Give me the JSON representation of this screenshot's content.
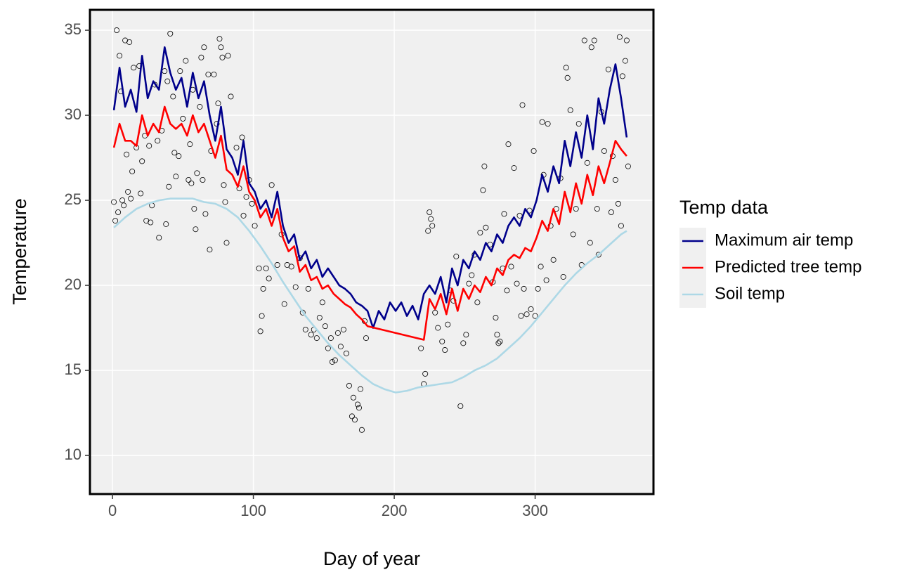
{
  "chart_data": {
    "type": "line",
    "x_label": "Day of year",
    "y_label": "Temperature",
    "legend_title": "Temp data",
    "legend_position": "right",
    "grid": true,
    "xlim": [
      -16,
      384
    ],
    "ylim": [
      7.73,
      36.2
    ],
    "xticks": [
      0,
      100,
      200,
      300
    ],
    "yticks": [
      10,
      15,
      20,
      25,
      30,
      35
    ],
    "series": [
      {
        "name": "Maximum air temp",
        "color": "#00008b",
        "x": [
          1,
          5,
          9,
          13,
          17,
          21,
          25,
          29,
          33,
          37,
          41,
          45,
          49,
          53,
          57,
          61,
          65,
          69,
          73,
          77,
          81,
          85,
          89,
          93,
          97,
          101,
          105,
          109,
          113,
          117,
          121,
          125,
          129,
          133,
          137,
          141,
          145,
          149,
          153,
          157,
          161,
          165,
          169,
          173,
          177,
          181,
          185,
          189,
          193,
          197,
          201,
          205,
          209,
          213,
          217,
          221,
          225,
          229,
          233,
          237,
          241,
          245,
          249,
          253,
          257,
          261,
          265,
          269,
          273,
          277,
          281,
          285,
          289,
          293,
          297,
          301,
          305,
          309,
          313,
          317,
          321,
          325,
          329,
          333,
          337,
          341,
          345,
          349,
          353,
          357,
          361,
          365
        ],
        "y": [
          30.3,
          32.8,
          30.5,
          31.5,
          30.2,
          33.5,
          31,
          32,
          31.5,
          34,
          32.5,
          31.5,
          32.2,
          30.5,
          32.5,
          31,
          32,
          30,
          28.5,
          30.5,
          28,
          27.5,
          26.5,
          28.5,
          26,
          25.5,
          24.5,
          25,
          24,
          25.5,
          23.5,
          22.5,
          23,
          21.5,
          22,
          21,
          21.5,
          20.5,
          21,
          20.5,
          20,
          19.8,
          19.5,
          19,
          18.8,
          18.5,
          17.5,
          18.5,
          18,
          19,
          18.5,
          19,
          18.2,
          18.8,
          18,
          19.5,
          20,
          19.5,
          20.5,
          19,
          21,
          20,
          21.5,
          21,
          22,
          21.5,
          22.5,
          22,
          23,
          22.5,
          23.5,
          24,
          23.5,
          24.5,
          24,
          25,
          26.5,
          25.5,
          27,
          26,
          28.5,
          27,
          29,
          27.5,
          30,
          28,
          31,
          29.5,
          31.5,
          33,
          31,
          28.7
        ]
      },
      {
        "name": "Predicted tree temp",
        "color": "#ff0000",
        "x": [
          1,
          5,
          9,
          13,
          17,
          21,
          25,
          29,
          33,
          37,
          41,
          45,
          49,
          53,
          57,
          61,
          65,
          69,
          73,
          77,
          81,
          85,
          89,
          93,
          97,
          101,
          105,
          109,
          113,
          117,
          121,
          125,
          129,
          133,
          137,
          141,
          145,
          149,
          153,
          157,
          161,
          165,
          169,
          173,
          177,
          181,
          221,
          225,
          229,
          233,
          237,
          241,
          245,
          249,
          253,
          257,
          261,
          265,
          269,
          273,
          277,
          281,
          285,
          289,
          293,
          297,
          301,
          305,
          309,
          313,
          317,
          321,
          325,
          329,
          333,
          337,
          341,
          345,
          349,
          353,
          357,
          361,
          365
        ],
        "y": [
          28.1,
          29.5,
          28.5,
          28.5,
          28.2,
          30,
          28.8,
          29.5,
          29,
          30.5,
          29.5,
          29.2,
          29.5,
          28.8,
          30,
          29,
          29.5,
          28.5,
          27.5,
          28.8,
          26.8,
          26.5,
          25.8,
          27,
          25.5,
          25,
          24,
          24.5,
          23.5,
          24.5,
          22.8,
          22,
          22.3,
          20.8,
          21.2,
          20.3,
          20.5,
          19.8,
          20,
          19.5,
          19.2,
          18.9,
          18.7,
          18.3,
          18,
          17.6,
          16.8,
          19.2,
          18.6,
          19.5,
          18.3,
          19.8,
          18.5,
          19.8,
          19.2,
          20,
          19.6,
          20.5,
          20,
          21,
          20.6,
          21.5,
          21.8,
          21.6,
          22.2,
          22,
          22.8,
          23.8,
          23.2,
          24.5,
          23.6,
          25.5,
          24.3,
          26,
          24.8,
          26.5,
          25.3,
          27,
          26,
          27.2,
          28.5,
          28,
          27.6
        ]
      },
      {
        "name": "Soil temp",
        "color": "#add8e6",
        "x": [
          1,
          9,
          17,
          25,
          33,
          41,
          49,
          57,
          65,
          73,
          81,
          89,
          97,
          105,
          113,
          121,
          129,
          137,
          145,
          153,
          161,
          169,
          177,
          185,
          193,
          201,
          209,
          217,
          225,
          233,
          241,
          249,
          257,
          265,
          273,
          281,
          289,
          297,
          305,
          313,
          321,
          329,
          337,
          345,
          353,
          361,
          365
        ],
        "y": [
          23.4,
          24,
          24.5,
          24.8,
          25,
          25.1,
          25.1,
          25.1,
          24.9,
          24.8,
          24.5,
          24,
          23.2,
          22.3,
          21.3,
          20.2,
          19.2,
          18.2,
          17.4,
          16.6,
          15.9,
          15.3,
          14.7,
          14.2,
          13.9,
          13.7,
          13.8,
          14,
          14.1,
          14.2,
          14.3,
          14.6,
          15,
          15.3,
          15.7,
          16.3,
          16.9,
          17.6,
          18.4,
          19.2,
          20,
          20.7,
          21.3,
          21.8,
          22.4,
          23,
          23.2
        ]
      }
    ],
    "points": {
      "color": "#000000",
      "x": [
        1,
        2,
        3,
        4,
        5,
        6,
        7,
        8,
        9,
        10,
        11,
        12,
        13,
        14,
        15,
        17,
        19,
        20,
        21,
        23,
        24,
        26,
        27,
        28,
        30,
        32,
        33,
        35,
        37,
        38,
        39,
        40,
        41,
        43,
        44,
        45,
        47,
        48,
        50,
        52,
        54,
        55,
        56,
        57,
        58,
        59,
        60,
        62,
        63,
        64,
        65,
        66,
        68,
        69,
        70,
        72,
        74,
        75,
        76,
        77,
        78,
        79,
        80,
        81,
        82,
        84,
        88,
        90,
        92,
        93,
        95,
        97,
        99,
        101,
        104,
        105,
        106,
        107,
        109,
        111,
        113,
        117,
        120,
        122,
        124,
        127,
        130,
        133,
        135,
        137,
        139,
        141,
        143,
        145,
        147,
        149,
        151,
        153,
        155,
        156,
        158,
        160,
        162,
        164,
        166,
        168,
        170,
        171,
        172,
        174,
        175,
        176,
        177,
        179,
        180,
        219,
        221,
        222,
        224,
        225,
        226,
        227,
        229,
        231,
        234,
        236,
        238,
        240,
        242,
        244,
        247,
        249,
        251,
        253,
        255,
        257,
        259,
        261,
        263,
        264,
        265,
        268,
        270,
        272,
        273,
        274,
        275,
        277,
        278,
        280,
        281,
        283,
        285,
        287,
        289,
        290,
        291,
        292,
        294,
        296,
        297,
        299,
        300,
        302,
        304,
        305,
        306,
        308,
        309,
        311,
        313,
        315,
        318,
        320,
        322,
        323,
        325,
        327,
        329,
        331,
        333,
        335,
        337,
        339,
        340,
        342,
        344,
        345,
        347,
        349,
        352,
        354,
        355,
        357,
        359,
        360,
        361,
        362,
        364,
        365,
        366
      ],
      "y": [
        24.9,
        23.8,
        35,
        24.3,
        33.5,
        31.4,
        25,
        24.7,
        34.4,
        27.7,
        25.5,
        34.3,
        25.1,
        26.7,
        32.8,
        28.1,
        32.9,
        25.4,
        27.3,
        28.8,
        23.8,
        28.2,
        23.7,
        24.7,
        31.8,
        28.5,
        22.8,
        29.1,
        32.6,
        23.6,
        32,
        25.8,
        34.8,
        31.1,
        27.8,
        26.4,
        27.6,
        32.6,
        29.8,
        33.2,
        26.2,
        28.3,
        26,
        31.5,
        24.5,
        23.3,
        26.6,
        30.5,
        33.4,
        26.2,
        34,
        24.2,
        32.4,
        22.1,
        27.9,
        32.4,
        29.5,
        30.7,
        34.5,
        34,
        33.4,
        25.9,
        24.9,
        22.5,
        33.5,
        31.1,
        28.1,
        25.7,
        28.7,
        24.1,
        25.2,
        26.2,
        24.8,
        23.5,
        21,
        17.3,
        18.2,
        19.8,
        21,
        20.4,
        25.9,
        21.2,
        23,
        18.9,
        21.2,
        21.1,
        19.9,
        21.6,
        18.4,
        17.4,
        19.8,
        17.1,
        17.4,
        16.9,
        18.1,
        19,
        17.6,
        16.3,
        16.9,
        15.5,
        15.6,
        17.2,
        16.4,
        17.4,
        16,
        14.1,
        12.3,
        13.4,
        12.1,
        13,
        12.8,
        13.9,
        11.5,
        17.9,
        16.9,
        16.3,
        14.2,
        14.8,
        23.2,
        24.3,
        23.9,
        23.5,
        18.4,
        17.5,
        16.7,
        16.2,
        17.7,
        19.7,
        19.1,
        21.7,
        12.9,
        16.6,
        17.1,
        20.1,
        20.6,
        21.8,
        19,
        23.1,
        25.6,
        27,
        23.4,
        22.4,
        20.2,
        18.1,
        17.1,
        16.6,
        16.7,
        21,
        24.2,
        19.7,
        28.3,
        21.1,
        26.9,
        20.1,
        24.1,
        18.2,
        30.6,
        19.8,
        18.3,
        24.4,
        18.6,
        27.9,
        18.2,
        19.8,
        21.1,
        29.6,
        26.5,
        20.3,
        29.5,
        23.5,
        21.5,
        24.5,
        26.3,
        20.5,
        32.8,
        32.2,
        30.3,
        23,
        24.5,
        29.5,
        21.2,
        34.4,
        27.2,
        22.5,
        34,
        34.4,
        24.5,
        21.8,
        30.2,
        27.9,
        32.7,
        24.3,
        27.6,
        26.2,
        24.8,
        34.6,
        23.5,
        32.3,
        33.2,
        34.4,
        27
      ]
    }
  }
}
